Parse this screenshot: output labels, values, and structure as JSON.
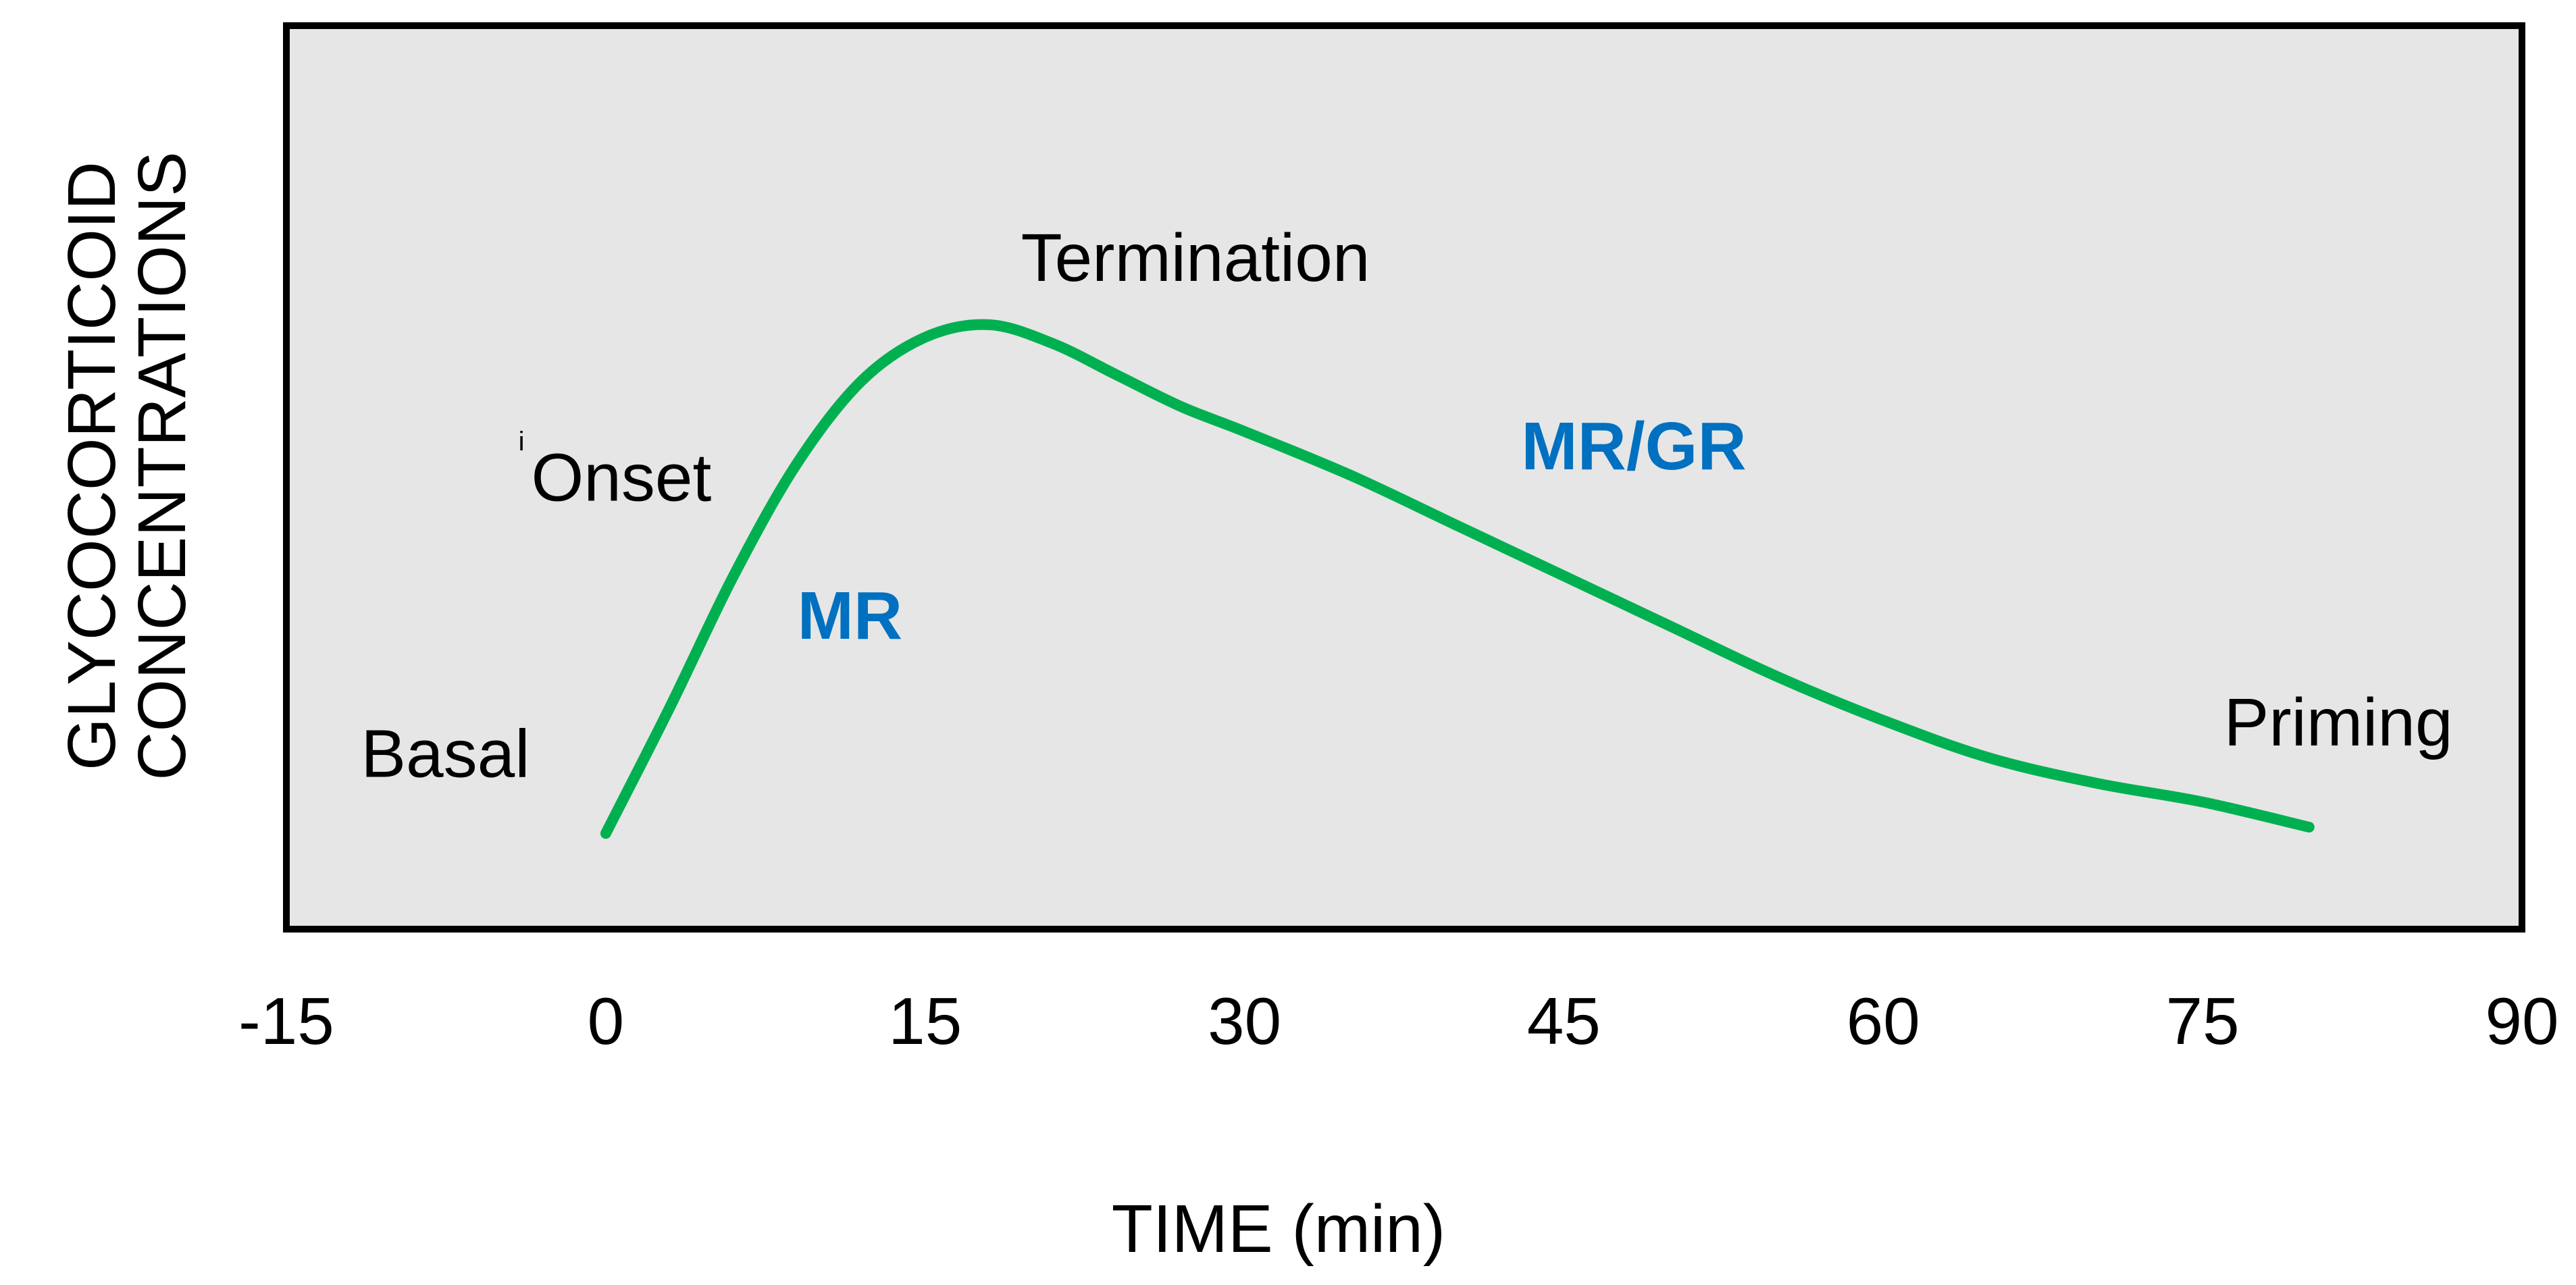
{
  "chart_data": {
    "type": "line",
    "title": "",
    "xlabel": "TIME (min)",
    "ylabel": "GLYCOCORTICOID CONCENTRATIONS",
    "ylabel_lines": [
      "GLYCOCORTICOID",
      "CONCENTRATIONS"
    ],
    "xlim": [
      -15,
      90
    ],
    "ylim": [
      0,
      100
    ],
    "x_ticks": [
      -15,
      0,
      15,
      30,
      45,
      60,
      75,
      90
    ],
    "x_tick_labels": [
      "-15",
      "0",
      "15",
      "30",
      "45",
      "60",
      "75",
      "90"
    ],
    "grid": false,
    "legend": "none",
    "series": [
      {
        "name": "glucocorticoid concentration",
        "color": "#00b050",
        "x": [
          0,
          3,
          6,
          9,
          12,
          15,
          18,
          21,
          24,
          27,
          30,
          35,
          40,
          45,
          50,
          55,
          60,
          65,
          70,
          75,
          80
        ],
        "y": [
          6,
          26,
          47,
          65,
          78,
          85,
          87,
          84,
          79,
          74,
          70,
          63,
          55,
          47,
          39,
          31,
          24,
          18,
          14,
          11,
          7
        ]
      }
    ],
    "annotations": [
      {
        "text": "Basal",
        "x": -11.5,
        "y": 15,
        "kind": "phase"
      },
      {
        "text": "Onset",
        "x": -3.5,
        "y": 59,
        "kind": "phase"
      },
      {
        "text": "i",
        "x": -4.1,
        "y": 67,
        "kind": "mark"
      },
      {
        "text": "MR",
        "x": 9,
        "y": 37,
        "kind": "receptor"
      },
      {
        "text": "Termination",
        "x": 19.5,
        "y": 94,
        "kind": "phase"
      },
      {
        "text": "MR/GR",
        "x": 43,
        "y": 64,
        "kind": "receptor"
      },
      {
        "text": "Priming",
        "x": 76,
        "y": 20,
        "kind": "phase"
      }
    ]
  },
  "colors": {
    "plot_background": "#e6e6e6",
    "frame": "#000000",
    "curve": "#00b050",
    "receptor_text": "#0070c0",
    "text": "#000000"
  }
}
